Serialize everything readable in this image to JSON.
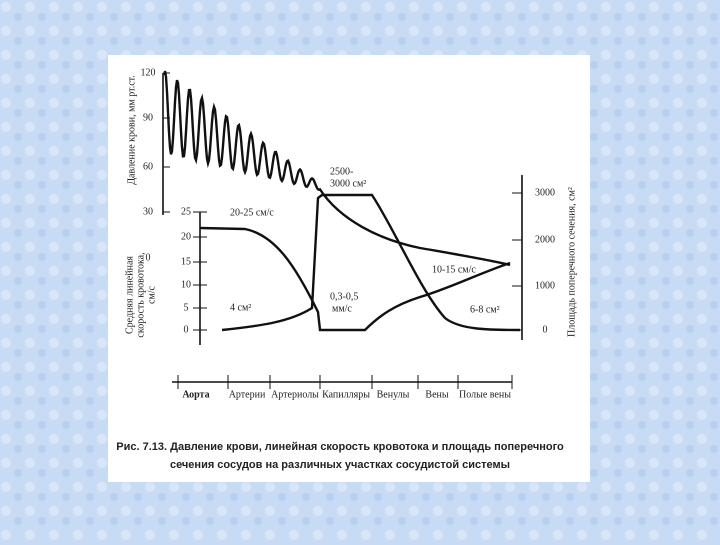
{
  "figure": {
    "left_axis_title": "Давление крови, мм рт.ст.",
    "left_ticks": [
      "120",
      "90",
      "60",
      "30",
      "0"
    ],
    "velocity_axis_title": [
      "Средняя линейная",
      "скорость кровотока,",
      "см/с"
    ],
    "velocity_ticks": [
      "25",
      "20",
      "15",
      "10",
      "5",
      "0"
    ],
    "right_axis_title": "Площадь поперечного сечения, см²",
    "right_ticks": [
      "3000",
      "2000",
      "1000",
      "0"
    ],
    "segments": [
      "Аорта",
      "Артерии",
      "Артериолы",
      "Капилляры",
      "Венулы",
      "Вены",
      "Полые вены"
    ],
    "annotations": [
      "20-25 см/с",
      "2500-",
      "3000 см²",
      "10-15 см/с",
      "4 см²",
      "0,3-0,5",
      "мм/с",
      "6-8 см²"
    ],
    "caption": [
      "Рис. 7.13. Давление крови, линейная скорость кровотока и площадь поперечного",
      "сечения сосудов на различных участках сосудистой системы"
    ]
  }
}
